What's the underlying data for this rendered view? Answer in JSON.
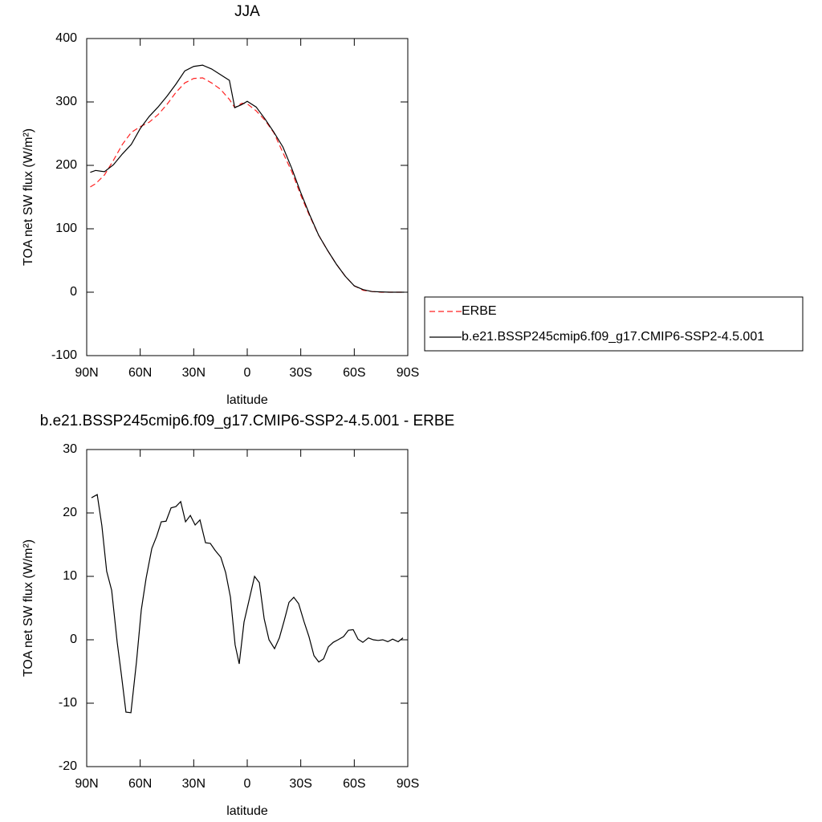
{
  "chart_data": [
    {
      "type": "line",
      "title": "JJA",
      "xlabel": "latitude",
      "ylabel": "TOA net SW flux (W/m²)",
      "x": [
        88,
        85,
        80,
        75,
        70,
        65,
        60,
        55,
        50,
        45,
        40,
        35,
        30,
        25,
        20,
        15,
        10,
        7,
        3,
        0,
        -5,
        -10,
        -15,
        -20,
        -25,
        -30,
        -35,
        -40,
        -45,
        -50,
        -55,
        -60,
        -65,
        -70,
        -75,
        -80,
        -85,
        -88
      ],
      "series": [
        {
          "name": "ERBE",
          "color": "#ff2020",
          "line_style": "dashed",
          "values": [
            166,
            171,
            185,
            208,
            233,
            252,
            261,
            268,
            280,
            296,
            315,
            330,
            337,
            338,
            330,
            320,
            304,
            291,
            298,
            297,
            286,
            271,
            251,
            220,
            190,
            153,
            120,
            90,
            66,
            44,
            25,
            10,
            3,
            1,
            0,
            0,
            0,
            0
          ]
        },
        {
          "name": "b.e21.BSSP245cmip6.f09_g17.CMIP6-SSP2-4.5.001",
          "color": "#000000",
          "line_style": "solid",
          "values": [
            189,
            192,
            190,
            201,
            218,
            233,
            258,
            277,
            292,
            309,
            328,
            349,
            356,
            358,
            352,
            343,
            334,
            291,
            296,
            301,
            292,
            273,
            252,
            229,
            195,
            157,
            122,
            90,
            66,
            44,
            25,
            10,
            4,
            1,
            0.5,
            0,
            0,
            0
          ]
        }
      ],
      "xlim": [
        90,
        -90
      ],
      "xticks": [
        {
          "value": 90,
          "label": "90N"
        },
        {
          "value": 60,
          "label": "60N"
        },
        {
          "value": 30,
          "label": "30N"
        },
        0,
        {
          "value": -30,
          "label": "30S"
        },
        {
          "value": -60,
          "label": "60S"
        },
        {
          "value": -90,
          "label": "90S"
        }
      ],
      "ylim": [
        -100,
        400
      ],
      "yticks": [
        -100,
        0,
        100,
        200,
        300,
        400
      ],
      "legend": "right"
    },
    {
      "type": "line",
      "title": "b.e21.BSSP245cmip6.f09_g17.CMIP6-SSP2-4.5.001 - ERBE",
      "xlabel": "latitude",
      "ylabel": "TOA net SW flux (W/m²)",
      "x": [
        87.3,
        84.1,
        81.5,
        78.8,
        76,
        72.9,
        70.6,
        68,
        65.2,
        62.1,
        59.4,
        56.7,
        53.5,
        50.8,
        48.2,
        45.5,
        42.7,
        40,
        37.3,
        34.6,
        31.9,
        29.2,
        26.5,
        23.4,
        20.7,
        18,
        14.8,
        12.1,
        9.4,
        6.8,
        4.5,
        1.8,
        -4.1,
        -6.8,
        -9.5,
        -12.2,
        -15.3,
        -18,
        -20.7,
        -23.4,
        -26.1,
        -28.8,
        -31.9,
        -34.6,
        -37.4,
        -40.1,
        -42.8,
        -45.5,
        -48.2,
        -50.9,
        -54,
        -56.7,
        -59.4,
        -62.1,
        -64.8,
        -67.9,
        -70.7,
        -73.4,
        -76,
        -78.8,
        -81.5,
        -84.6,
        -87.3
      ],
      "series": [
        {
          "name": null,
          "color": "#000000",
          "line_style": "solid",
          "values": [
            22.4,
            22.9,
            18,
            10.8,
            7.8,
            -0.4,
            -5.4,
            -11.4,
            -11.5,
            -3.5,
            4.7,
            9.7,
            14.4,
            16.3,
            18.6,
            18.7,
            20.8,
            21,
            21.8,
            18.6,
            19.6,
            18.1,
            18.9,
            15.3,
            15.2,
            14.1,
            13,
            10.6,
            6.7,
            -0.8,
            -3.8,
            2.8,
            10,
            9,
            3.3,
            0,
            -1.4,
            0.3,
            3,
            5.9,
            6.7,
            5.7,
            2.8,
            0.5,
            -2.5,
            -3.5,
            -3,
            -1.1,
            -0.4,
            0,
            0.5,
            1.5,
            1.6,
            0.1,
            -0.4,
            0.3,
            0,
            -0.1,
            0,
            -0.3,
            0.1,
            -0.3,
            0.3
          ]
        }
      ],
      "xlim": [
        90,
        -90
      ],
      "xticks": [
        {
          "value": 90,
          "label": "90N"
        },
        {
          "value": 60,
          "label": "60N"
        },
        {
          "value": 30,
          "label": "30N"
        },
        0,
        {
          "value": -30,
          "label": "30S"
        },
        {
          "value": -60,
          "label": "60S"
        },
        {
          "value": -90,
          "label": "90S"
        }
      ],
      "ylim": [
        -20,
        30
      ],
      "yticks": [
        -20,
        -10,
        0,
        10,
        20,
        30
      ]
    }
  ]
}
